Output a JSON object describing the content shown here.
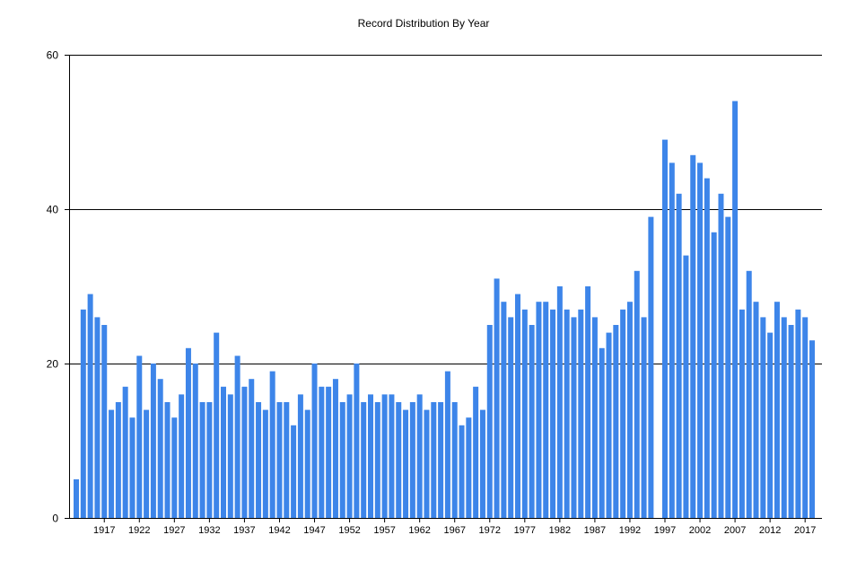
{
  "chart_data": {
    "type": "bar",
    "title": "Record Distribution By Year",
    "xlabel": "",
    "ylabel": "",
    "ylim": [
      0,
      60
    ],
    "y_ticks": [
      0,
      20,
      40,
      60
    ],
    "x_tick_labels": [
      1917,
      1922,
      1927,
      1932,
      1937,
      1942,
      1947,
      1952,
      1957,
      1962,
      1967,
      1972,
      1977,
      1982,
      1987,
      1992,
      1997,
      2002,
      2007,
      2012,
      2017
    ],
    "grid": "horizontal",
    "bar_color": "#3d85e9",
    "categories": [
      1913,
      1914,
      1915,
      1916,
      1917,
      1918,
      1919,
      1920,
      1921,
      1922,
      1923,
      1924,
      1925,
      1926,
      1927,
      1928,
      1929,
      1930,
      1931,
      1932,
      1933,
      1934,
      1935,
      1936,
      1937,
      1938,
      1939,
      1940,
      1941,
      1942,
      1943,
      1944,
      1945,
      1946,
      1947,
      1948,
      1949,
      1950,
      1951,
      1952,
      1953,
      1954,
      1955,
      1956,
      1957,
      1958,
      1959,
      1960,
      1961,
      1962,
      1963,
      1964,
      1965,
      1966,
      1967,
      1968,
      1969,
      1970,
      1971,
      1972,
      1973,
      1974,
      1975,
      1976,
      1977,
      1978,
      1979,
      1980,
      1981,
      1982,
      1983,
      1984,
      1985,
      1986,
      1987,
      1988,
      1989,
      1990,
      1991,
      1992,
      1993,
      1994,
      1995,
      1996,
      1997,
      1998,
      1999,
      2000,
      2001,
      2002,
      2003,
      2004,
      2005,
      2006,
      2007,
      2008,
      2009,
      2010,
      2011,
      2012,
      2013,
      2014,
      2015,
      2016,
      2017,
      2018
    ],
    "values": [
      5,
      27,
      29,
      26,
      25,
      14,
      15,
      17,
      13,
      21,
      14,
      20,
      18,
      15,
      13,
      16,
      22,
      20,
      15,
      15,
      24,
      17,
      16,
      21,
      17,
      18,
      15,
      14,
      19,
      15,
      15,
      12,
      16,
      14,
      20,
      17,
      17,
      18,
      15,
      16,
      20,
      15,
      16,
      15,
      16,
      16,
      15,
      14,
      15,
      16,
      14,
      15,
      15,
      19,
      15,
      12,
      13,
      17,
      14,
      25,
      31,
      28,
      26,
      29,
      27,
      25,
      28,
      28,
      27,
      30,
      27,
      26,
      27,
      30,
      26,
      22,
      24,
      25,
      27,
      28,
      32,
      26,
      39,
      0,
      49,
      46,
      42,
      34,
      47,
      46,
      44,
      37,
      42,
      39,
      54,
      27,
      32,
      28,
      26,
      24,
      28,
      26,
      25,
      27,
      26,
      23
    ]
  }
}
